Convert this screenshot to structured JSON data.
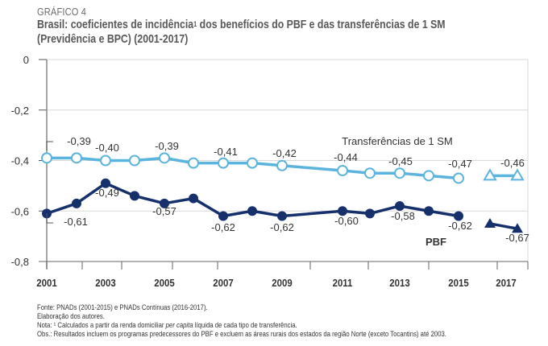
{
  "header": {
    "kicker": "GRÁFICO 4",
    "title_part1": "Brasil: coeficientes de incidência",
    "title_sup": "1",
    "title_part2": " dos benefícios do PBF e das transferências de 1 SM",
    "title_line2": "(Previdência e BPC) (2001-2017)"
  },
  "chart_data": {
    "type": "line",
    "title": "Brasil: coeficientes de incidência dos benefícios do PBF e das transferências de 1 SM (Previdência e BPC) (2001-2017)",
    "xlabel": "",
    "ylabel": "",
    "ylim": [
      -0.8,
      0
    ],
    "yticks": [
      0,
      -0.2,
      -0.4,
      -0.6,
      -0.8
    ],
    "ytick_labels": [
      "0",
      "-0,2",
      "-0,4",
      "-0,6",
      "-0,8"
    ],
    "xticks": [
      2001,
      2003,
      2005,
      2007,
      2009,
      2011,
      2013,
      2015,
      2017
    ],
    "xtick_labels": [
      "2001",
      "2003",
      "2005",
      "2007",
      "2009",
      "2011",
      "2013",
      "2015",
      "2017"
    ],
    "grid": true,
    "series": [
      {
        "name": "Transferências de 1 SM",
        "color": "#5bb4dd",
        "marker": "open-circle",
        "segments": [
          {
            "x": [
              2001,
              2002,
              2003,
              2004,
              2005,
              2006,
              2007,
              2008,
              2009,
              2011,
              2012,
              2013,
              2014,
              2015
            ],
            "y": [
              -0.39,
              -0.39,
              -0.4,
              -0.4,
              -0.39,
              -0.41,
              -0.41,
              -0.41,
              -0.42,
              -0.44,
              -0.45,
              -0.45,
              -0.46,
              -0.47
            ]
          },
          {
            "x": [
              2016,
              2017
            ],
            "y": [
              -0.46,
              -0.46
            ],
            "marker": "open-triangle"
          }
        ],
        "labels": [
          {
            "x": 2001,
            "text": "-0,39"
          },
          {
            "x": 2003,
            "text": "-0,40"
          },
          {
            "x": 2005,
            "text": "-0,39"
          },
          {
            "x": 2007,
            "text": "-0,41"
          },
          {
            "x": 2009,
            "text": "-0,42"
          },
          {
            "x": 2011,
            "text": "-0,44"
          },
          {
            "x": 2013,
            "text": "-0,45"
          },
          {
            "x": 2015,
            "text": "-0,47"
          },
          {
            "x": 2017,
            "text": "-0,46"
          }
        ],
        "series_label": "Transferências de 1 SM"
      },
      {
        "name": "PBF",
        "color": "#16306b",
        "marker": "filled-circle",
        "segments": [
          {
            "x": [
              2001,
              2002,
              2003,
              2004,
              2005,
              2006,
              2007,
              2008,
              2009,
              2011,
              2012,
              2013,
              2014,
              2015
            ],
            "y": [
              -0.61,
              -0.57,
              -0.49,
              -0.54,
              -0.57,
              -0.55,
              -0.62,
              -0.6,
              -0.62,
              -0.6,
              -0.61,
              -0.58,
              -0.6,
              -0.62
            ]
          },
          {
            "x": [
              2016,
              2017
            ],
            "y": [
              -0.65,
              -0.67
            ],
            "marker": "filled-triangle"
          }
        ],
        "labels": [
          {
            "x": 2001,
            "text": "-0,61"
          },
          {
            "x": 2003,
            "text": "-0,49"
          },
          {
            "x": 2005,
            "text": "-0,57"
          },
          {
            "x": 2007,
            "text": "-0,62"
          },
          {
            "x": 2009,
            "text": "-0,62"
          },
          {
            "x": 2011,
            "text": "-0,60"
          },
          {
            "x": 2013,
            "text": "-0,58"
          },
          {
            "x": 2015,
            "text": "-0,62"
          },
          {
            "x": 2017,
            "text": "-0,67"
          }
        ],
        "series_label": "PBF"
      }
    ]
  },
  "notes": {
    "fonte": "Fonte: PNADs (2001-2015) e PNADs Contínuas (2016-2017).",
    "elaboracao": "Elaboração dos autores.",
    "nota_pre": "Nota: ¹ Calculados a partir da renda domiciliar ",
    "nota_italic": "per capita",
    "nota_post": " líquida de cada tipo de transferência.",
    "obs": "Obs.: Resultados incluem os programas predecessores do PBF e excluem as áreas rurais dos estados da região Norte (exceto Tocantins) até 2003."
  }
}
